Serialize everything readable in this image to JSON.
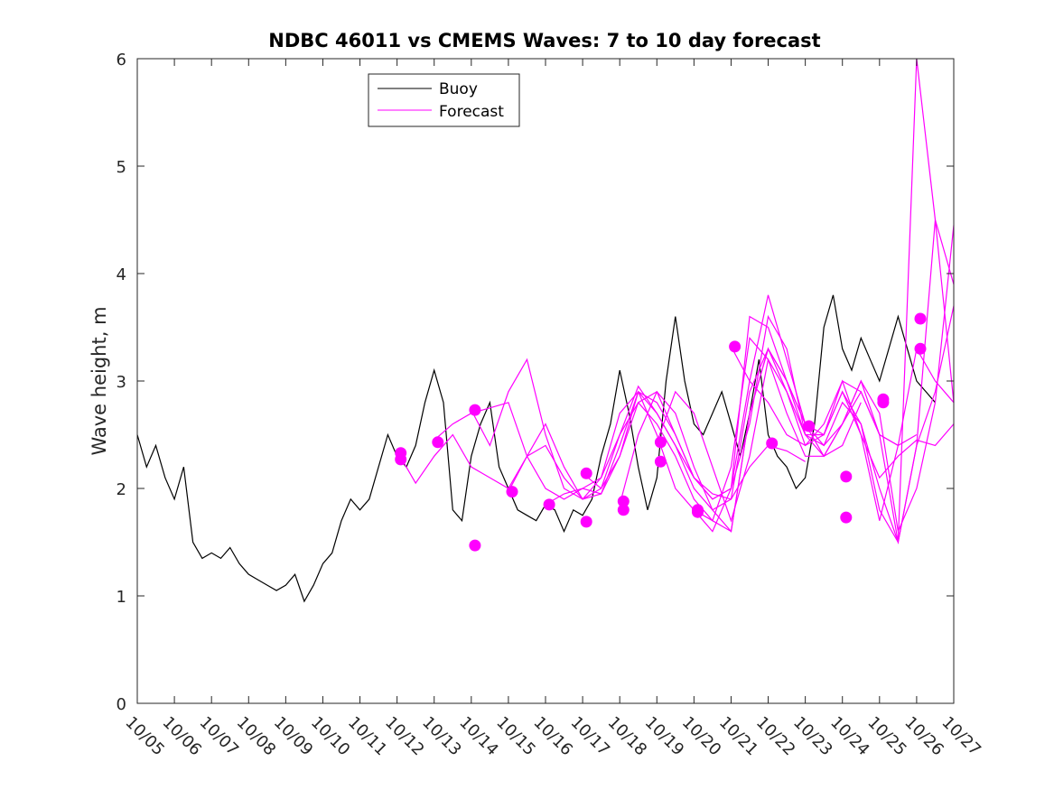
{
  "chart_data": {
    "type": "line",
    "title": "NDBC 46011 vs CMEMS Waves: 7 to 10 day forecast",
    "xlabel": "",
    "ylabel": "Wave height, m",
    "xlim": [
      0,
      22
    ],
    "ylim": [
      0,
      6
    ],
    "yticks": [
      0,
      1,
      2,
      3,
      4,
      5,
      6
    ],
    "x_tick_labels": [
      "10/05",
      "10/06",
      "10/07",
      "10/08",
      "10/09",
      "10/10",
      "10/11",
      "10/12",
      "10/13",
      "10/14",
      "10/15",
      "10/16",
      "10/17",
      "10/18",
      "10/19",
      "10/20",
      "10/21",
      "10/22",
      "10/23",
      "10/24",
      "10/25",
      "10/26",
      "10/27"
    ],
    "x_unit": "days since 10/05 00:00",
    "legend": [
      "Buoy",
      "Forecast"
    ],
    "legend_location": "top-center",
    "colors": {
      "buoy": "#000000",
      "forecast": "#ff00ff"
    },
    "series": [
      {
        "name": "Buoy",
        "x": [
          0,
          0.25,
          0.5,
          0.75,
          1.0,
          1.25,
          1.5,
          1.75,
          2.0,
          2.25,
          2.5,
          2.75,
          3.0,
          3.25,
          3.5,
          3.75,
          4.0,
          4.25,
          4.5,
          4.75,
          5.0,
          5.25,
          5.5,
          5.75,
          6.0,
          6.25,
          6.5,
          6.75,
          7.0,
          7.25,
          7.5,
          7.75,
          8.0,
          8.25,
          8.5,
          8.75,
          9.0,
          9.25,
          9.5,
          9.75,
          10.0,
          10.25,
          10.5,
          10.75,
          11.0,
          11.25,
          11.5,
          11.75,
          12.0,
          12.25,
          12.5,
          12.75,
          13.0,
          13.25,
          13.5,
          13.75,
          14.0,
          14.25,
          14.5,
          14.75,
          15.0,
          15.25,
          15.5,
          15.75,
          16.0,
          16.25,
          16.5,
          16.75,
          17.0,
          17.25,
          17.5,
          17.75,
          18.0,
          18.25,
          18.5,
          18.75,
          19.0,
          19.25,
          19.5,
          19.75,
          20.0,
          20.25,
          20.5,
          20.75,
          21.0,
          21.25,
          21.5
        ],
        "values": [
          2.5,
          2.2,
          2.4,
          2.1,
          1.9,
          2.2,
          1.5,
          1.35,
          1.4,
          1.35,
          1.45,
          1.3,
          1.2,
          1.15,
          1.1,
          1.05,
          1.1,
          1.2,
          0.95,
          1.1,
          1.3,
          1.4,
          1.7,
          1.9,
          1.8,
          1.9,
          2.2,
          2.5,
          2.3,
          2.2,
          2.4,
          2.8,
          3.1,
          2.8,
          1.8,
          1.7,
          2.3,
          2.6,
          2.8,
          2.2,
          2.0,
          1.8,
          1.75,
          1.7,
          1.85,
          1.8,
          1.6,
          1.8,
          1.75,
          1.9,
          2.3,
          2.6,
          3.1,
          2.7,
          2.2,
          1.8,
          2.1,
          3.0,
          3.6,
          3.0,
          2.6,
          2.5,
          2.7,
          2.9,
          2.6,
          2.3,
          2.7,
          3.2,
          2.5,
          2.3,
          2.2,
          2.0,
          2.1,
          2.6,
          3.5,
          3.8,
          3.3,
          3.1,
          3.4,
          3.2,
          3.0,
          3.3,
          3.6,
          3.3,
          3.0,
          2.9,
          2.8
        ]
      },
      {
        "name": "Forecast",
        "runs": [
          {
            "x": [
              7,
              7.5,
              8,
              8.5,
              9,
              9.5,
              10,
              10.5,
              11,
              11.5,
              12,
              12.5,
              13,
              13.5,
              14,
              14.5,
              15,
              15.5,
              16,
              16.5,
              17,
              17.5,
              18
            ],
            "values": [
              2.35,
              2.05,
              2.3,
              2.5,
              2.2,
              2.1,
              2.0,
              2.3,
              2.4,
              2.1,
              1.9,
              1.95,
              2.4,
              2.9,
              2.7,
              2.4,
              2.1,
              1.95,
              1.9,
              2.2,
              2.4,
              2.35,
              2.25
            ]
          },
          {
            "x": [
              8,
              8.5,
              9,
              9.5,
              10,
              10.5,
              11,
              11.5,
              12,
              12.5,
              13,
              13.5,
              14,
              14.5,
              15,
              15.5,
              16,
              16.5,
              17,
              17.5,
              18,
              18.5,
              19,
              19.5
            ],
            "values": [
              2.45,
              2.6,
              2.7,
              2.75,
              2.8,
              2.3,
              2.0,
              1.9,
              2.0,
              2.1,
              2.5,
              2.95,
              2.7,
              2.4,
              2.0,
              1.8,
              1.6,
              2.7,
              3.3,
              3.0,
              2.6,
              2.3,
              2.4,
              2.8
            ]
          },
          {
            "x": [
              9,
              9.5,
              10,
              10.5,
              11,
              11.5,
              12,
              12.5,
              13,
              13.5,
              14,
              14.5,
              15,
              15.5,
              16,
              16.5,
              17,
              17.5,
              18,
              18.5,
              19,
              19.5,
              20,
              20.5
            ],
            "values": [
              2.73,
              2.4,
              2.9,
              3.2,
              2.5,
              2.0,
              1.9,
              2.1,
              2.7,
              2.9,
              2.5,
              2.0,
              1.8,
              1.6,
              2.0,
              3.6,
              3.5,
              3.0,
              2.6,
              2.4,
              2.6,
              3.0,
              2.5,
              2.4
            ]
          },
          {
            "x": [
              10,
              10.5,
              11,
              11.5,
              12,
              12.5,
              13,
              13.5,
              14,
              14.5,
              15,
              15.5,
              16,
              16.5,
              17,
              17.5,
              18,
              18.5,
              19,
              19.5,
              20,
              20.5,
              21
            ],
            "values": [
              1.97,
              2.3,
              2.6,
              2.2,
              1.9,
              2.0,
              2.5,
              2.8,
              2.6,
              2.3,
              1.9,
              1.7,
              2.2,
              3.4,
              3.2,
              2.7,
              2.3,
              2.3,
              2.6,
              2.9,
              2.5,
              2.4,
              2.5
            ]
          },
          {
            "x": [
              11,
              11.5,
              12,
              12.5,
              13,
              13.5,
              14,
              14.5,
              15,
              15.5,
              16,
              16.5,
              17,
              17.5,
              18,
              18.5,
              19,
              19.5,
              20,
              20.5,
              21,
              21.5,
              22
            ],
            "values": [
              1.85,
              1.95,
              2.0,
              1.95,
              2.3,
              2.8,
              2.9,
              2.5,
              2.1,
              1.9,
              2.0,
              2.6,
              3.6,
              3.3,
              2.5,
              2.3,
              2.6,
              3.0,
              2.7,
              1.6,
              2.0,
              2.8,
              4.45
            ]
          },
          {
            "x": [
              12,
              12.5,
              13,
              13.5,
              14,
              14.5,
              15,
              15.5,
              16,
              16.5,
              17,
              17.5,
              18,
              18.5,
              19,
              19.5,
              20,
              20.5,
              21,
              21.5,
              22
            ],
            "values": [
              2.14,
              2.0,
              2.3,
              2.9,
              2.8,
              2.5,
              2.1,
              1.9,
              2.0,
              3.0,
              3.8,
              3.2,
              2.6,
              2.5,
              3.0,
              2.9,
              2.5,
              1.5,
              2.4,
              4.5,
              3.9
            ]
          },
          {
            "x": [
              13,
              13.5,
              14,
              14.5,
              15,
              15.5,
              16,
              16.5,
              17,
              17.5,
              18,
              18.5,
              19,
              19.5,
              20,
              20.5,
              21,
              21.5,
              22
            ],
            "values": [
              1.85,
              2.5,
              2.9,
              2.7,
              2.2,
              1.8,
              1.9,
              2.9,
              3.3,
              3.0,
              2.5,
              2.5,
              2.9,
              2.5,
              1.7,
              2.4,
              3.3,
              3.0,
              2.8
            ]
          },
          {
            "x": [
              14,
              14.5,
              15,
              15.5,
              16,
              16.5,
              17,
              17.5,
              18,
              18.5,
              19,
              19.5,
              20,
              20.5,
              21,
              21.5,
              22
            ],
            "values": [
              2.43,
              2.9,
              2.7,
              2.2,
              1.7,
              2.3,
              3.2,
              2.9,
              2.5,
              2.4,
              2.8,
              2.6,
              2.0,
              1.5,
              2.4,
              2.9,
              3.7
            ]
          },
          {
            "x": [
              15,
              15.5,
              16,
              16.5,
              17,
              17.5,
              18,
              18.5,
              19,
              19.5,
              20,
              20.5,
              21,
              21.5,
              22
            ],
            "values": [
              1.8,
              1.7,
              1.6,
              2.7,
              3.3,
              2.9,
              2.4,
              2.5,
              2.9,
              2.6,
              1.8,
              1.5,
              6.0,
              4.5,
              2.8
            ]
          },
          {
            "x": [
              16,
              16.5,
              17,
              17.5,
              18,
              18.5,
              19,
              19.5,
              20,
              20.5,
              21,
              21.5,
              22
            ],
            "values": [
              3.32,
              3.0,
              2.8,
              2.5,
              2.4,
              2.6,
              3.0,
              2.5,
              2.1,
              2.3,
              2.45,
              2.4,
              2.6
            ]
          }
        ],
        "markers": [
          {
            "x": 7.1,
            "y": 2.33
          },
          {
            "x": 7.1,
            "y": 2.27
          },
          {
            "x": 8.1,
            "y": 2.43
          },
          {
            "x": 9.1,
            "y": 2.73
          },
          {
            "x": 9.1,
            "y": 1.47
          },
          {
            "x": 10.1,
            "y": 1.97
          },
          {
            "x": 11.1,
            "y": 1.85
          },
          {
            "x": 12.1,
            "y": 2.14
          },
          {
            "x": 12.1,
            "y": 1.69
          },
          {
            "x": 13.1,
            "y": 1.88
          },
          {
            "x": 13.1,
            "y": 1.8
          },
          {
            "x": 14.1,
            "y": 2.43
          },
          {
            "x": 14.1,
            "y": 2.25
          },
          {
            "x": 15.1,
            "y": 1.8
          },
          {
            "x": 15.1,
            "y": 1.78
          },
          {
            "x": 16.1,
            "y": 3.32
          },
          {
            "x": 17.1,
            "y": 2.42
          },
          {
            "x": 18.1,
            "y": 2.58
          },
          {
            "x": 19.1,
            "y": 2.11
          },
          {
            "x": 19.1,
            "y": 1.73
          },
          {
            "x": 20.1,
            "y": 2.83
          },
          {
            "x": 20.1,
            "y": 2.8
          },
          {
            "x": 21.1,
            "y": 3.58
          },
          {
            "x": 21.1,
            "y": 3.3
          }
        ]
      }
    ]
  }
}
